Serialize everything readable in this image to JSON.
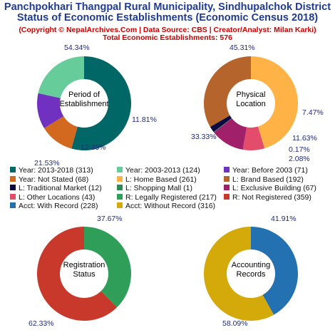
{
  "header": {
    "title_line1": "Panchpokhari Thangpal Rural Municipality, Sindhupalchok District",
    "title_line2": "Status of Economic Establishments (Economic Census 2018)",
    "subtitle_line1": "(Copyright © NepalArchives.Com | Data Source: CBS | Creator/Analyst: Milan Karki)",
    "subtitle_line2": "Total Economic Establishments: 576"
  },
  "chart_data": [
    {
      "type": "pie",
      "title": "Period of Establishment",
      "center_lines": [
        "Period of",
        "Establishment"
      ],
      "slices": [
        {
          "label": "Year: 2013-2018",
          "value": 313,
          "pct": "54.34%",
          "color": "#006666"
        },
        {
          "label": "Year: Not Stated",
          "value": 68,
          "pct": "11.81%",
          "color": "#d2691e"
        },
        {
          "label": "Year: Before 2003",
          "value": 71,
          "pct": "12.33%",
          "color": "#7030c0"
        },
        {
          "label": "Year: 2003-2013",
          "value": 124,
          "pct": "21.53%",
          "color": "#66cc99"
        }
      ]
    },
    {
      "type": "pie",
      "title": "Physical Location",
      "center_lines": [
        "Physical",
        "Location"
      ],
      "slices": [
        {
          "label": "L: Home Based",
          "value": 261,
          "pct": "45.31%",
          "color": "#ffb347"
        },
        {
          "label": "L: Other Locations",
          "value": 43,
          "pct": "7.47%",
          "color": "#e34c6a"
        },
        {
          "label": "L: Exclusive Building",
          "value": 67,
          "pct": "11.63%",
          "color": "#a0206a"
        },
        {
          "label": "L: Shopping Mall",
          "value": 1,
          "pct": "0.17%",
          "color": "#2e8b57"
        },
        {
          "label": "L: Traditional Market",
          "value": 12,
          "pct": "2.08%",
          "color": "#0a0a40"
        },
        {
          "label": "L: Brand Based",
          "value": 192,
          "pct": "33.33%",
          "color": "#b5652c"
        }
      ]
    },
    {
      "type": "pie",
      "title": "Registration Status",
      "center_lines": [
        "Registration",
        "Status"
      ],
      "slices": [
        {
          "label": "R: Legally Registered",
          "value": 217,
          "pct": "37.67%",
          "color": "#2e9e58"
        },
        {
          "label": "R: Not Registered",
          "value": 359,
          "pct": "62.33%",
          "color": "#c8392b"
        }
      ]
    },
    {
      "type": "pie",
      "title": "Accounting Records",
      "center_lines": [
        "Accounting",
        "Records"
      ],
      "slices": [
        {
          "label": "Acct: With Record",
          "value": 228,
          "pct": "41.91%",
          "color": "#2371b0"
        },
        {
          "label": "Acct: Without Record",
          "value": 316,
          "pct": "58.09%",
          "color": "#d4a90a"
        }
      ]
    }
  ],
  "legend": [
    {
      "text": "Year: 2013-2018 (313)",
      "color": "#006666"
    },
    {
      "text": "Year: 2003-2013 (124)",
      "color": "#66cc99"
    },
    {
      "text": "Year: Before 2003 (71)",
      "color": "#7030c0"
    },
    {
      "text": "Year: Not Stated (68)",
      "color": "#d2691e"
    },
    {
      "text": "L: Home Based (261)",
      "color": "#ffb347"
    },
    {
      "text": "L: Brand Based (192)",
      "color": "#b5652c"
    },
    {
      "text": "L: Traditional Market (12)",
      "color": "#0a0a40"
    },
    {
      "text": "L: Shopping Mall (1)",
      "color": "#2e8b57"
    },
    {
      "text": "L: Exclusive Building (67)",
      "color": "#a0206a"
    },
    {
      "text": "L: Other Locations (43)",
      "color": "#e34c6a"
    },
    {
      "text": "R: Legally Registered (217)",
      "color": "#2e9e58"
    },
    {
      "text": "R: Not Registered (359)",
      "color": "#c8392b"
    },
    {
      "text": "Acct: With Record (228)",
      "color": "#2371b0"
    },
    {
      "text": "Acct: Without Record (316)",
      "color": "#d4a90a"
    }
  ]
}
